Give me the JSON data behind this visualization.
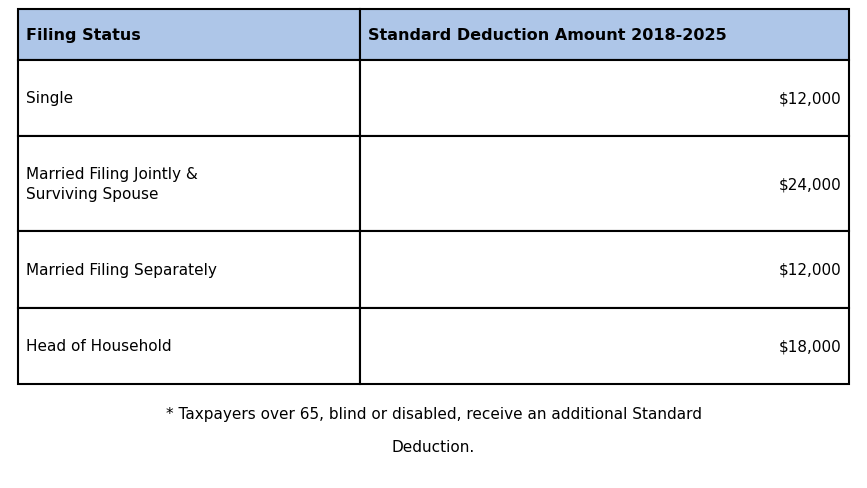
{
  "header": [
    "Filing Status",
    "Standard Deduction Amount 2018-2025"
  ],
  "rows": [
    [
      "Single",
      "$12,000"
    ],
    [
      "Married Filing Jointly &\nSurviving Spouse",
      "$24,000"
    ],
    [
      "Married Filing Separately",
      "$12,000"
    ],
    [
      "Head of Household",
      "$18,000"
    ]
  ],
  "footnote_line1": "* Taxpayers over 65, blind or disabled, receive an additional Standard",
  "footnote_line2": "Deduction.",
  "header_bg": "#aec6e8",
  "row_bg": "#ffffff",
  "border_color": "#000000",
  "header_text_color": "#000000",
  "row_text_color": "#000000",
  "font_size_header": 11.5,
  "font_size_row": 11,
  "font_size_footnote": 11,
  "fig_width": 8.67,
  "fig_height": 4.89,
  "dpi": 100
}
